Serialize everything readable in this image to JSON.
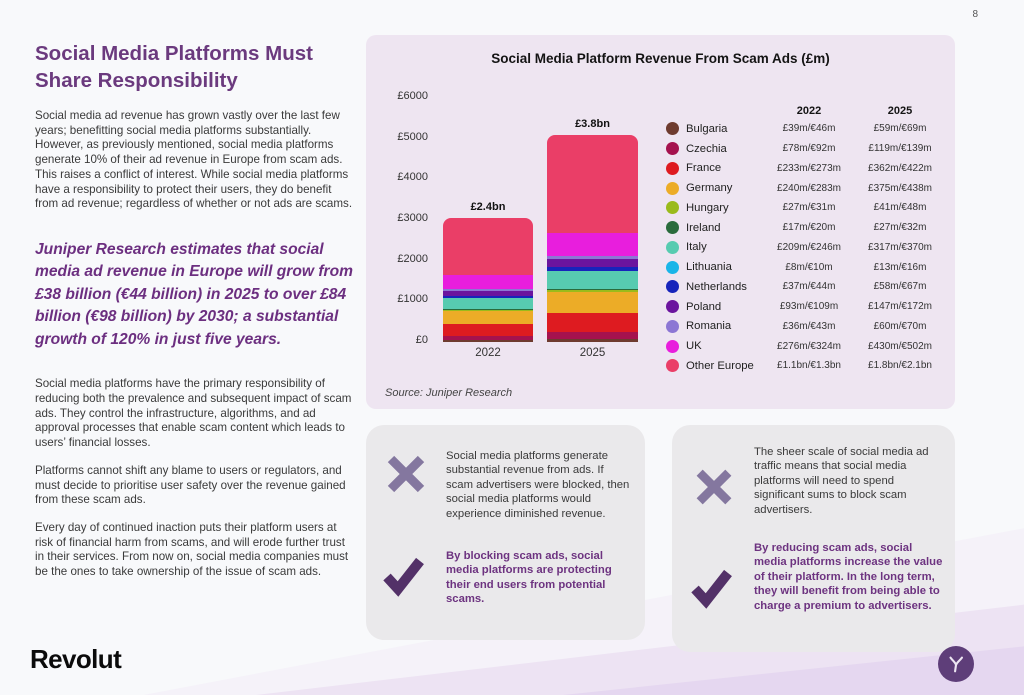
{
  "page": {
    "number": "8"
  },
  "left_column": {
    "heading": "Social Media Platforms Must Share Responsibility",
    "para1": "Social media ad revenue has grown vastly over the last few years; benefitting social media platforms substantially. However, as previously mentioned, social media platforms generate 10% of their ad revenue in Europe from scam ads. This raises a conflict of interest. While social media platforms have a responsibility to protect their users, they do benefit from ad revenue; regardless of whether or not ads are scams.",
    "quote": "Juniper Research estimates that social media ad revenue in Europe will grow from £38 billion (€44 billion) in 2025 to over £84 billion (€98 billion) by 2030; a substantial growth of 120% in just five years.",
    "para2": "Social media platforms have the primary responsibility of reducing both the prevalence and subsequent impact of scam ads. They control the infrastructure, algorithms, and ad approval processes that enable scam content which leads to users’ financial losses.",
    "para3": "Platforms cannot shift any blame to users or regulators, and must decide to prioritise user safety over the revenue gained from these scam ads.",
    "para4": "Every day of continued inaction puts their platform users at risk of financial harm from scams, and will erode further trust in their services. From now on, social media companies must be the ones to take ownership of the issue of scam ads."
  },
  "chart_data": {
    "type": "bar",
    "stacked": true,
    "title": "Social Media Platform Revenue From Scam Ads (£m)",
    "source": "Source: Juniper Research",
    "categories": [
      "2022",
      "2025"
    ],
    "bar_total_labels": [
      "£2.4bn",
      "£3.8bn"
    ],
    "y_ticks": [
      "£0",
      "£1000",
      "£2000",
      "£3000",
      "£4000",
      "£5000",
      "£6000"
    ],
    "ylim": [
      0,
      6000
    ],
    "grid": false,
    "legend_position": "right",
    "legend_columns": [
      "2022",
      "2025"
    ],
    "visual_top_axis_values": [
      3050,
      5100
    ],
    "series": [
      {
        "name": "Bulgaria",
        "color": "#6E3B2F",
        "values": [
          39,
          59
        ],
        "labels": [
          "£39m/€46m",
          "£59m/€69m"
        ]
      },
      {
        "name": "Czechia",
        "color": "#A5124E",
        "values": [
          78,
          119
        ],
        "labels": [
          "£78m/€92m",
          "£119m/€139m"
        ]
      },
      {
        "name": "France",
        "color": "#DE1B20",
        "values": [
          233,
          362
        ],
        "labels": [
          "£233m/€273m",
          "£362m/€422m"
        ]
      },
      {
        "name": "Germany",
        "color": "#ECAC27",
        "values": [
          240,
          375
        ],
        "labels": [
          "£240m/€283m",
          "£375m/€438m"
        ]
      },
      {
        "name": "Hungary",
        "color": "#9ABB1B",
        "values": [
          27,
          41
        ],
        "labels": [
          "£27m/€31m",
          "£41m/€48m"
        ]
      },
      {
        "name": "Ireland",
        "color": "#2A6B3C",
        "values": [
          17,
          27
        ],
        "labels": [
          "£17m/€20m",
          "£27m/€32m"
        ]
      },
      {
        "name": "Italy",
        "color": "#57CBB0",
        "values": [
          209,
          317
        ],
        "labels": [
          "£209m/€246m",
          "£317m/€370m"
        ]
      },
      {
        "name": "Lithuania",
        "color": "#19B5E8",
        "values": [
          8,
          13
        ],
        "labels": [
          "£8m/€10m",
          "£13m/€16m"
        ]
      },
      {
        "name": "Netherlands",
        "color": "#1724BB",
        "values": [
          37,
          58
        ],
        "labels": [
          "£37m/€44m",
          "£58m/€67m"
        ]
      },
      {
        "name": "Poland",
        "color": "#6B149E",
        "values": [
          93,
          147
        ],
        "labels": [
          "£93m/€109m",
          "£147m/€172m"
        ]
      },
      {
        "name": "Romania",
        "color": "#8C76D4",
        "values": [
          36,
          60
        ],
        "labels": [
          "£36m/€43m",
          "£60m/€70m"
        ]
      },
      {
        "name": "UK",
        "color": "#E81EDD",
        "values": [
          276,
          430
        ],
        "labels": [
          "£276m/€324m",
          "£430m/€502m"
        ]
      },
      {
        "name": "Other Europe",
        "color": "#EA3E67",
        "values": [
          1100,
          1800
        ],
        "labels": [
          "£1.1bn/€1.3bn",
          "£1.8bn/€2.1bn"
        ]
      }
    ]
  },
  "cards": {
    "left": {
      "negative": "Social media platforms generate substantial revenue from ads. If scam advertisers were blocked, then social media platforms would experience diminished revenue.",
      "positive": "By blocking scam ads, social media platforms are protecting their end users from potential scams."
    },
    "right": {
      "negative": "The sheer scale of social media ad traffic means that social media platforms will need to spend significant sums to block scam advertisers.",
      "positive": "By reducing scam ads, social media platforms increase the value of their platform. In the long term, they will benefit from being able to charge a premium to advertisers."
    }
  },
  "footer": {
    "brand": "Revolut"
  },
  "icons": {
    "negative": "x-icon",
    "positive": "check-icon",
    "brand": "revolut-mark-icon"
  },
  "colors": {
    "heading_purple": "#6B3A7E",
    "quote_purple": "#6C2F80",
    "card_bold_purple": "#6D3380",
    "x_icon": "#84779F",
    "check_icon": "#533168",
    "chart_card_bg": "#EEE5F1",
    "info_card_bg": "#EAE9EB",
    "brand_circle": "#5E3E79",
    "page_bg": "#F8F9FB"
  }
}
